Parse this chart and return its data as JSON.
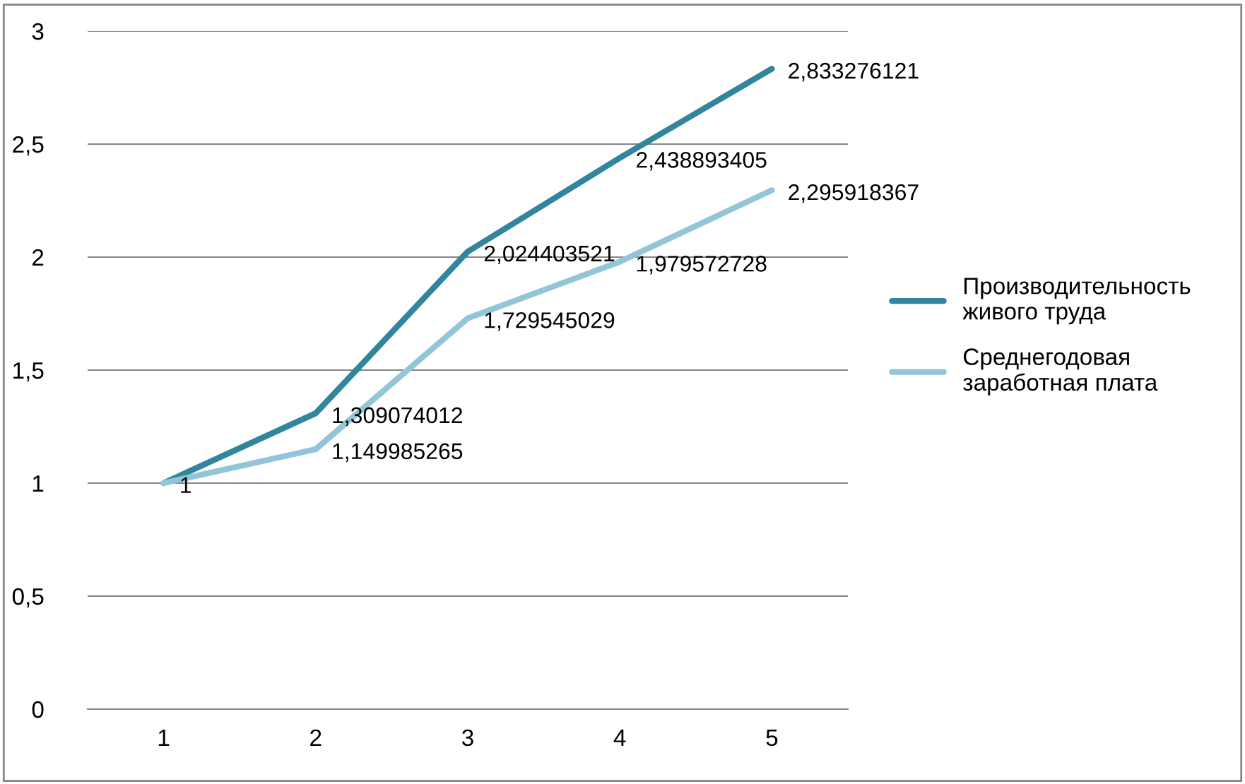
{
  "chart_data": {
    "type": "line",
    "categories": [
      "1",
      "2",
      "3",
      "4",
      "5"
    ],
    "series": [
      {
        "name": "Производительность живого труда",
        "color": "#31859c",
        "values": [
          1,
          1.309074012,
          2.024403521,
          2.438893405,
          2.833276121
        ],
        "value_labels": [
          "1",
          "1,309074012",
          "2,024403521",
          "2,438893405",
          "2,833276121"
        ]
      },
      {
        "name": "Среднегодовая заработная плата",
        "color": "#93c5d8",
        "values": [
          1,
          1.149985265,
          1.729545029,
          1.979572728,
          2.295918367
        ],
        "value_labels": [
          null,
          "1,149985265",
          "1,729545029",
          "1,979572728",
          "2,295918367"
        ]
      }
    ],
    "ylim": [
      0,
      3
    ],
    "yticks": [
      {
        "value": 0,
        "label": "0"
      },
      {
        "value": 0.5,
        "label": "0,5"
      },
      {
        "value": 1,
        "label": "1"
      },
      {
        "value": 1.5,
        "label": "1,5"
      },
      {
        "value": 2,
        "label": "2"
      },
      {
        "value": 2.5,
        "label": "2,5"
      },
      {
        "value": 3,
        "label": "3"
      }
    ],
    "grid": "y",
    "legend": "right",
    "marker": "none",
    "line_style": "solid"
  }
}
